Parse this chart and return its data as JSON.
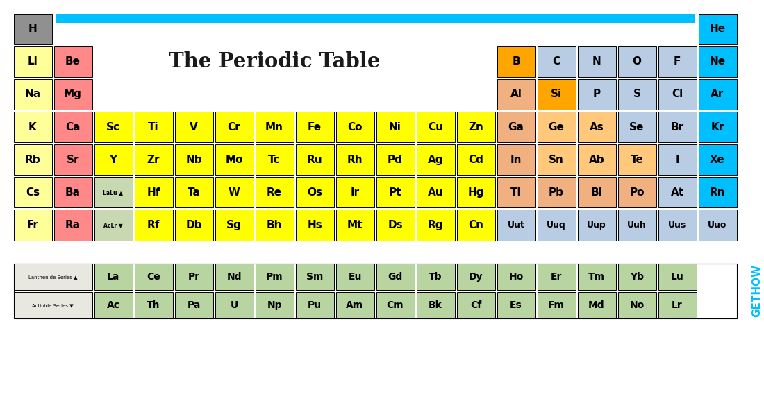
{
  "title": "The Periodic Table",
  "title_color": "#1a1a1a",
  "bg_color": "#ffffff",
  "bar_color": "#00bfff",
  "colors": {
    "H_gray": "#909090",
    "alkali_yellow": "#ffff99",
    "alkaline_pink": "#ff8888",
    "transition_yellow": "#ffff00",
    "boron_orange": "#ffa500",
    "nonmetal_lightblue": "#b8cce4",
    "metalloid_orange": "#ffc87a",
    "noble_cyan": "#00bfff",
    "lanthanide_green": "#b8d4a0",
    "lalu_green": "#c8d8b0",
    "post_transition_peach": "#f0b080",
    "Si_orange": "#ffa500",
    "label_bg": "#e8e8e0"
  },
  "elements": [
    {
      "symbol": "H",
      "row": 0,
      "col": 0,
      "color": "H_gray"
    },
    {
      "symbol": "He",
      "row": 0,
      "col": 17,
      "color": "noble_cyan"
    },
    {
      "symbol": "Li",
      "row": 1,
      "col": 0,
      "color": "alkali_yellow"
    },
    {
      "symbol": "Be",
      "row": 1,
      "col": 1,
      "color": "alkaline_pink"
    },
    {
      "symbol": "B",
      "row": 1,
      "col": 12,
      "color": "boron_orange"
    },
    {
      "symbol": "C",
      "row": 1,
      "col": 13,
      "color": "nonmetal_lightblue"
    },
    {
      "symbol": "N",
      "row": 1,
      "col": 14,
      "color": "nonmetal_lightblue"
    },
    {
      "symbol": "O",
      "row": 1,
      "col": 15,
      "color": "nonmetal_lightblue"
    },
    {
      "symbol": "F",
      "row": 1,
      "col": 16,
      "color": "nonmetal_lightblue"
    },
    {
      "symbol": "Ne",
      "row": 1,
      "col": 17,
      "color": "noble_cyan"
    },
    {
      "symbol": "Na",
      "row": 2,
      "col": 0,
      "color": "alkali_yellow"
    },
    {
      "symbol": "Mg",
      "row": 2,
      "col": 1,
      "color": "alkaline_pink"
    },
    {
      "symbol": "Al",
      "row": 2,
      "col": 12,
      "color": "post_transition_peach"
    },
    {
      "symbol": "Si",
      "row": 2,
      "col": 13,
      "color": "Si_orange"
    },
    {
      "symbol": "P",
      "row": 2,
      "col": 14,
      "color": "nonmetal_lightblue"
    },
    {
      "symbol": "S",
      "row": 2,
      "col": 15,
      "color": "nonmetal_lightblue"
    },
    {
      "symbol": "Cl",
      "row": 2,
      "col": 16,
      "color": "nonmetal_lightblue"
    },
    {
      "symbol": "Ar",
      "row": 2,
      "col": 17,
      "color": "noble_cyan"
    },
    {
      "symbol": "K",
      "row": 3,
      "col": 0,
      "color": "alkali_yellow"
    },
    {
      "symbol": "Ca",
      "row": 3,
      "col": 1,
      "color": "alkaline_pink"
    },
    {
      "symbol": "Sc",
      "row": 3,
      "col": 2,
      "color": "transition_yellow"
    },
    {
      "symbol": "Ti",
      "row": 3,
      "col": 3,
      "color": "transition_yellow"
    },
    {
      "symbol": "V",
      "row": 3,
      "col": 4,
      "color": "transition_yellow"
    },
    {
      "symbol": "Cr",
      "row": 3,
      "col": 5,
      "color": "transition_yellow"
    },
    {
      "symbol": "Mn",
      "row": 3,
      "col": 6,
      "color": "transition_yellow"
    },
    {
      "symbol": "Fe",
      "row": 3,
      "col": 7,
      "color": "transition_yellow"
    },
    {
      "symbol": "Co",
      "row": 3,
      "col": 8,
      "color": "transition_yellow"
    },
    {
      "symbol": "Ni",
      "row": 3,
      "col": 9,
      "color": "transition_yellow"
    },
    {
      "symbol": "Cu",
      "row": 3,
      "col": 10,
      "color": "transition_yellow"
    },
    {
      "symbol": "Zn",
      "row": 3,
      "col": 11,
      "color": "transition_yellow"
    },
    {
      "symbol": "Ga",
      "row": 3,
      "col": 12,
      "color": "post_transition_peach"
    },
    {
      "symbol": "Ge",
      "row": 3,
      "col": 13,
      "color": "metalloid_orange"
    },
    {
      "symbol": "As",
      "row": 3,
      "col": 14,
      "color": "metalloid_orange"
    },
    {
      "symbol": "Se",
      "row": 3,
      "col": 15,
      "color": "nonmetal_lightblue"
    },
    {
      "symbol": "Br",
      "row": 3,
      "col": 16,
      "color": "nonmetal_lightblue"
    },
    {
      "symbol": "Kr",
      "row": 3,
      "col": 17,
      "color": "noble_cyan"
    },
    {
      "symbol": "Rb",
      "row": 4,
      "col": 0,
      "color": "alkali_yellow"
    },
    {
      "symbol": "Sr",
      "row": 4,
      "col": 1,
      "color": "alkaline_pink"
    },
    {
      "symbol": "Y",
      "row": 4,
      "col": 2,
      "color": "transition_yellow"
    },
    {
      "symbol": "Zr",
      "row": 4,
      "col": 3,
      "color": "transition_yellow"
    },
    {
      "symbol": "Nb",
      "row": 4,
      "col": 4,
      "color": "transition_yellow"
    },
    {
      "symbol": "Mo",
      "row": 4,
      "col": 5,
      "color": "transition_yellow"
    },
    {
      "symbol": "Tc",
      "row": 4,
      "col": 6,
      "color": "transition_yellow"
    },
    {
      "symbol": "Ru",
      "row": 4,
      "col": 7,
      "color": "transition_yellow"
    },
    {
      "symbol": "Rh",
      "row": 4,
      "col": 8,
      "color": "transition_yellow"
    },
    {
      "symbol": "Pd",
      "row": 4,
      "col": 9,
      "color": "transition_yellow"
    },
    {
      "symbol": "Ag",
      "row": 4,
      "col": 10,
      "color": "transition_yellow"
    },
    {
      "symbol": "Cd",
      "row": 4,
      "col": 11,
      "color": "transition_yellow"
    },
    {
      "symbol": "In",
      "row": 4,
      "col": 12,
      "color": "post_transition_peach"
    },
    {
      "symbol": "Sn",
      "row": 4,
      "col": 13,
      "color": "metalloid_orange"
    },
    {
      "symbol": "Ab",
      "row": 4,
      "col": 14,
      "color": "metalloid_orange"
    },
    {
      "symbol": "Te",
      "row": 4,
      "col": 15,
      "color": "metalloid_orange"
    },
    {
      "symbol": "I",
      "row": 4,
      "col": 16,
      "color": "nonmetal_lightblue"
    },
    {
      "symbol": "Xe",
      "row": 4,
      "col": 17,
      "color": "noble_cyan"
    },
    {
      "symbol": "Cs",
      "row": 5,
      "col": 0,
      "color": "alkali_yellow"
    },
    {
      "symbol": "Ba",
      "row": 5,
      "col": 1,
      "color": "alkaline_pink"
    },
    {
      "symbol": "LaLu ▲",
      "row": 5,
      "col": 2,
      "color": "lalu_green",
      "small": true
    },
    {
      "symbol": "Hf",
      "row": 5,
      "col": 3,
      "color": "transition_yellow"
    },
    {
      "symbol": "Ta",
      "row": 5,
      "col": 4,
      "color": "transition_yellow"
    },
    {
      "symbol": "W",
      "row": 5,
      "col": 5,
      "color": "transition_yellow"
    },
    {
      "symbol": "Re",
      "row": 5,
      "col": 6,
      "color": "transition_yellow"
    },
    {
      "symbol": "Os",
      "row": 5,
      "col": 7,
      "color": "transition_yellow"
    },
    {
      "symbol": "Ir",
      "row": 5,
      "col": 8,
      "color": "transition_yellow"
    },
    {
      "symbol": "Pt",
      "row": 5,
      "col": 9,
      "color": "transition_yellow"
    },
    {
      "symbol": "Au",
      "row": 5,
      "col": 10,
      "color": "transition_yellow"
    },
    {
      "symbol": "Hg",
      "row": 5,
      "col": 11,
      "color": "transition_yellow"
    },
    {
      "symbol": "Tl",
      "row": 5,
      "col": 12,
      "color": "post_transition_peach"
    },
    {
      "symbol": "Pb",
      "row": 5,
      "col": 13,
      "color": "post_transition_peach"
    },
    {
      "symbol": "Bi",
      "row": 5,
      "col": 14,
      "color": "post_transition_peach"
    },
    {
      "symbol": "Po",
      "row": 5,
      "col": 15,
      "color": "post_transition_peach"
    },
    {
      "symbol": "At",
      "row": 5,
      "col": 16,
      "color": "nonmetal_lightblue"
    },
    {
      "symbol": "Rn",
      "row": 5,
      "col": 17,
      "color": "noble_cyan"
    },
    {
      "symbol": "Fr",
      "row": 6,
      "col": 0,
      "color": "alkali_yellow"
    },
    {
      "symbol": "Ra",
      "row": 6,
      "col": 1,
      "color": "alkaline_pink"
    },
    {
      "symbol": "AcLr ▼",
      "row": 6,
      "col": 2,
      "color": "lalu_green",
      "small": true
    },
    {
      "symbol": "Rf",
      "row": 6,
      "col": 3,
      "color": "transition_yellow"
    },
    {
      "symbol": "Db",
      "row": 6,
      "col": 4,
      "color": "transition_yellow"
    },
    {
      "symbol": "Sg",
      "row": 6,
      "col": 5,
      "color": "transition_yellow"
    },
    {
      "symbol": "Bh",
      "row": 6,
      "col": 6,
      "color": "transition_yellow"
    },
    {
      "symbol": "Hs",
      "row": 6,
      "col": 7,
      "color": "transition_yellow"
    },
    {
      "symbol": "Mt",
      "row": 6,
      "col": 8,
      "color": "transition_yellow"
    },
    {
      "symbol": "Ds",
      "row": 6,
      "col": 9,
      "color": "transition_yellow"
    },
    {
      "symbol": "Rg",
      "row": 6,
      "col": 10,
      "color": "transition_yellow"
    },
    {
      "symbol": "Cn",
      "row": 6,
      "col": 11,
      "color": "transition_yellow"
    },
    {
      "symbol": "Uut",
      "row": 6,
      "col": 12,
      "color": "nonmetal_lightblue"
    },
    {
      "symbol": "Uuq",
      "row": 6,
      "col": 13,
      "color": "nonmetal_lightblue"
    },
    {
      "symbol": "Uup",
      "row": 6,
      "col": 14,
      "color": "nonmetal_lightblue"
    },
    {
      "symbol": "Uuh",
      "row": 6,
      "col": 15,
      "color": "nonmetal_lightblue"
    },
    {
      "symbol": "Uus",
      "row": 6,
      "col": 16,
      "color": "nonmetal_lightblue"
    },
    {
      "symbol": "Uuo",
      "row": 6,
      "col": 17,
      "color": "nonmetal_lightblue"
    }
  ],
  "lanthanides": [
    "La",
    "Ce",
    "Pr",
    "Nd",
    "Pm",
    "Sm",
    "Eu",
    "Gd",
    "Tb",
    "Dy",
    "Ho",
    "Er",
    "Tm",
    "Yb",
    "Lu"
  ],
  "actinides": [
    "Ac",
    "Th",
    "Pa",
    "U",
    "Np",
    "Pu",
    "Am",
    "Cm",
    "Bk",
    "Cf",
    "Es",
    "Fm",
    "Md",
    "No",
    "Lr"
  ],
  "lantha_label": "Lanthenide Series ▲",
  "actinide_label": "Actinide Series ▼",
  "gethow_text": "GETHOW",
  "gethow_color": "#00bfff",
  "fig_width": 11.0,
  "fig_height": 5.78,
  "dpi": 100
}
